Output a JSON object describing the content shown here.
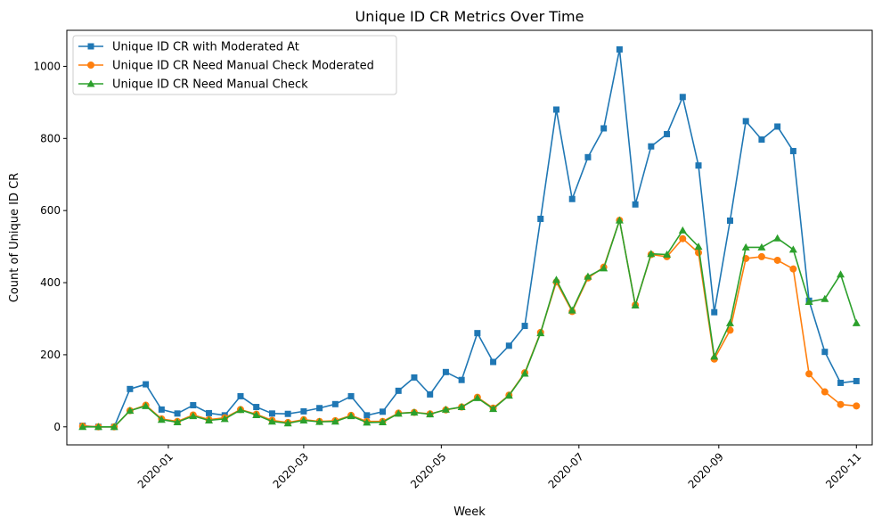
{
  "chart_data": {
    "type": "line",
    "title": "Unique ID CR Metrics Over Time",
    "xlabel": "Week",
    "ylabel": "Count of Unique ID CR",
    "xlim": [
      "2019-11-17",
      "2020-11-08"
    ],
    "ylim": [
      -50,
      1100
    ],
    "x_ticks": [
      {
        "date": "2020-01-01",
        "label": "2020-01"
      },
      {
        "date": "2020-03-01",
        "label": "2020-03"
      },
      {
        "date": "2020-05-01",
        "label": "2020-05"
      },
      {
        "date": "2020-07-01",
        "label": "2020-07"
      },
      {
        "date": "2020-09-01",
        "label": "2020-09"
      },
      {
        "date": "2020-11-01",
        "label": "2020-11"
      }
    ],
    "y_ticks": [
      0,
      200,
      400,
      600,
      800,
      1000
    ],
    "grid": false,
    "legend_position": "top-left",
    "x": [
      "2019-11-24",
      "2019-12-01",
      "2019-12-08",
      "2019-12-15",
      "2019-12-22",
      "2019-12-29",
      "2020-01-05",
      "2020-01-12",
      "2020-01-19",
      "2020-01-26",
      "2020-02-02",
      "2020-02-09",
      "2020-02-16",
      "2020-02-23",
      "2020-03-01",
      "2020-03-08",
      "2020-03-15",
      "2020-03-22",
      "2020-03-29",
      "2020-04-05",
      "2020-04-12",
      "2020-04-19",
      "2020-04-26",
      "2020-05-03",
      "2020-05-10",
      "2020-05-17",
      "2020-05-24",
      "2020-05-31",
      "2020-06-07",
      "2020-06-14",
      "2020-06-21",
      "2020-06-28",
      "2020-07-05",
      "2020-07-12",
      "2020-07-19",
      "2020-07-26",
      "2020-08-02",
      "2020-08-09",
      "2020-08-16",
      "2020-08-23",
      "2020-08-30",
      "2020-09-06",
      "2020-09-13",
      "2020-09-20",
      "2020-09-27",
      "2020-10-04",
      "2020-10-11",
      "2020-10-18",
      "2020-10-25",
      "2020-11-01"
    ],
    "series": [
      {
        "name": "Unique ID CR with Moderated At",
        "color": "#1f77b4",
        "marker": "square",
        "values": [
          3,
          0,
          0,
          105,
          118,
          48,
          37,
          60,
          38,
          32,
          85,
          55,
          37,
          36,
          43,
          52,
          63,
          85,
          32,
          42,
          100,
          137,
          90,
          152,
          130,
          260,
          180,
          225,
          280,
          577,
          880,
          632,
          748,
          828,
          1047,
          617,
          778,
          812,
          915,
          725,
          318,
          572,
          848,
          797,
          833,
          765,
          350,
          208,
          122,
          127
        ]
      },
      {
        "name": "Unique ID CR Need Manual Check Moderated",
        "color": "#ff7f0e",
        "marker": "circle",
        "values": [
          2,
          0,
          0,
          45,
          60,
          22,
          15,
          33,
          20,
          25,
          48,
          35,
          18,
          12,
          20,
          15,
          17,
          32,
          15,
          15,
          38,
          40,
          36,
          47,
          55,
          82,
          52,
          88,
          150,
          262,
          402,
          320,
          413,
          443,
          573,
          338,
          478,
          472,
          522,
          483,
          188,
          268,
          467,
          472,
          462,
          438,
          147,
          97,
          62,
          58
        ]
      },
      {
        "name": "Unique ID CR Need Manual Check",
        "color": "#2ca02c",
        "marker": "triangle",
        "values": [
          0,
          0,
          0,
          45,
          58,
          20,
          13,
          30,
          18,
          22,
          47,
          33,
          15,
          10,
          18,
          14,
          15,
          30,
          12,
          13,
          37,
          40,
          35,
          48,
          55,
          80,
          50,
          87,
          148,
          260,
          408,
          323,
          417,
          440,
          573,
          337,
          480,
          478,
          545,
          500,
          195,
          288,
          498,
          498,
          523,
          492,
          347,
          355,
          423,
          288
        ]
      }
    ]
  }
}
